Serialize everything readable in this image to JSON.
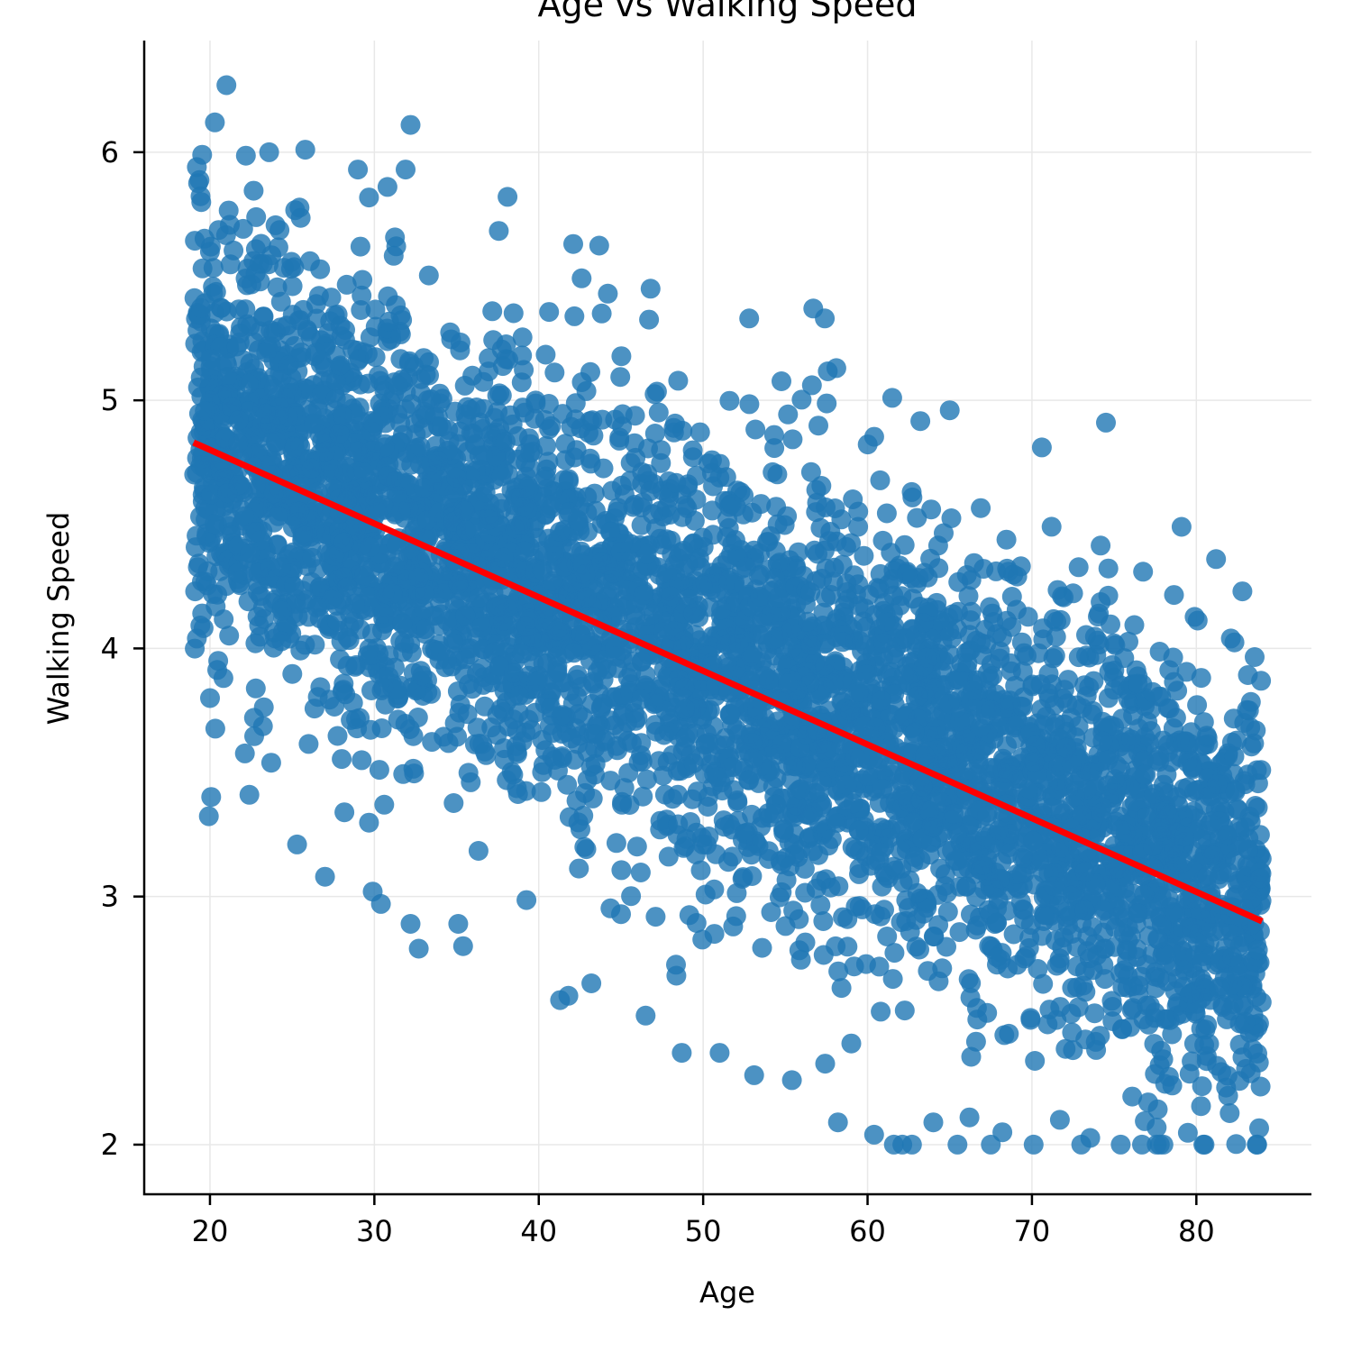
{
  "chart_data": {
    "type": "scatter",
    "title": "Age vs Walking Speed",
    "xlabel": "Age",
    "ylabel": "Walking Speed",
    "xlim": [
      16,
      87
    ],
    "ylim": [
      1.8,
      6.45
    ],
    "xticks": [
      20,
      30,
      40,
      50,
      60,
      70,
      80
    ],
    "yticks": [
      2,
      3,
      4,
      5,
      6
    ],
    "grid": true,
    "legend": "none",
    "point_color": "#1f77b4",
    "point_opacity": 0.8,
    "fit_line_color": "#ff0000",
    "fit_line": {
      "x": [
        19,
        84
      ],
      "y": [
        4.83,
        2.9
      ]
    },
    "points_summary": {
      "count_approx": 10000,
      "x_range": [
        19,
        84
      ],
      "y_clip_min": 2.0,
      "noise_sd": 0.55
    },
    "notable_points": [
      {
        "x": 21.0,
        "y": 6.27
      },
      {
        "x": 20.3,
        "y": 6.12
      },
      {
        "x": 32.2,
        "y": 6.11
      },
      {
        "x": 25.8,
        "y": 6.01
      },
      {
        "x": 23.6,
        "y": 6.0
      },
      {
        "x": 19.2,
        "y": 5.94
      },
      {
        "x": 29.0,
        "y": 5.93
      },
      {
        "x": 31.9,
        "y": 5.93
      },
      {
        "x": 30.8,
        "y": 5.86
      },
      {
        "x": 38.1,
        "y": 5.82
      },
      {
        "x": 42.1,
        "y": 5.63
      },
      {
        "x": 46.8,
        "y": 5.45
      },
      {
        "x": 44.2,
        "y": 5.43
      },
      {
        "x": 52.8,
        "y": 5.33
      },
      {
        "x": 56.7,
        "y": 5.37
      },
      {
        "x": 57.4,
        "y": 5.33
      },
      {
        "x": 58.1,
        "y": 5.13
      },
      {
        "x": 61.5,
        "y": 5.01
      },
      {
        "x": 65.0,
        "y": 4.96
      },
      {
        "x": 74.5,
        "y": 4.91
      },
      {
        "x": 70.6,
        "y": 4.81
      },
      {
        "x": 79.1,
        "y": 4.49
      },
      {
        "x": 81.2,
        "y": 4.36
      },
      {
        "x": 82.8,
        "y": 4.23
      },
      {
        "x": 82.1,
        "y": 4.04
      },
      {
        "x": 83.2,
        "y": 3.75
      },
      {
        "x": 19.1,
        "y": 4.23
      },
      {
        "x": 19.2,
        "y": 4.04
      },
      {
        "x": 20.0,
        "y": 3.8
      },
      {
        "x": 22.4,
        "y": 3.41
      },
      {
        "x": 25.3,
        "y": 3.21
      },
      {
        "x": 27.0,
        "y": 3.08
      },
      {
        "x": 29.9,
        "y": 3.02
      },
      {
        "x": 30.4,
        "y": 2.97
      },
      {
        "x": 32.2,
        "y": 2.89
      },
      {
        "x": 32.7,
        "y": 2.79
      },
      {
        "x": 35.1,
        "y": 2.89
      },
      {
        "x": 35.4,
        "y": 2.8
      },
      {
        "x": 41.8,
        "y": 2.6
      },
      {
        "x": 43.2,
        "y": 2.65
      },
      {
        "x": 46.5,
        "y": 2.52
      },
      {
        "x": 48.7,
        "y": 2.37
      },
      {
        "x": 51.0,
        "y": 2.37
      },
      {
        "x": 53.1,
        "y": 2.28
      },
      {
        "x": 55.4,
        "y": 2.26
      },
      {
        "x": 58.2,
        "y": 2.09
      },
      {
        "x": 60.4,
        "y": 2.04
      },
      {
        "x": 61.6,
        "y": 2.0
      },
      {
        "x": 62.7,
        "y": 2.0
      },
      {
        "x": 64.0,
        "y": 2.09
      },
      {
        "x": 66.2,
        "y": 2.11
      },
      {
        "x": 67.5,
        "y": 2.0
      },
      {
        "x": 68.2,
        "y": 2.05
      },
      {
        "x": 70.1,
        "y": 2.0
      },
      {
        "x": 71.7,
        "y": 2.1
      },
      {
        "x": 73.0,
        "y": 2.0
      },
      {
        "x": 75.4,
        "y": 2.0
      },
      {
        "x": 78.0,
        "y": 2.0
      },
      {
        "x": 80.5,
        "y": 2.0
      },
      {
        "x": 83.7,
        "y": 2.0
      }
    ]
  }
}
